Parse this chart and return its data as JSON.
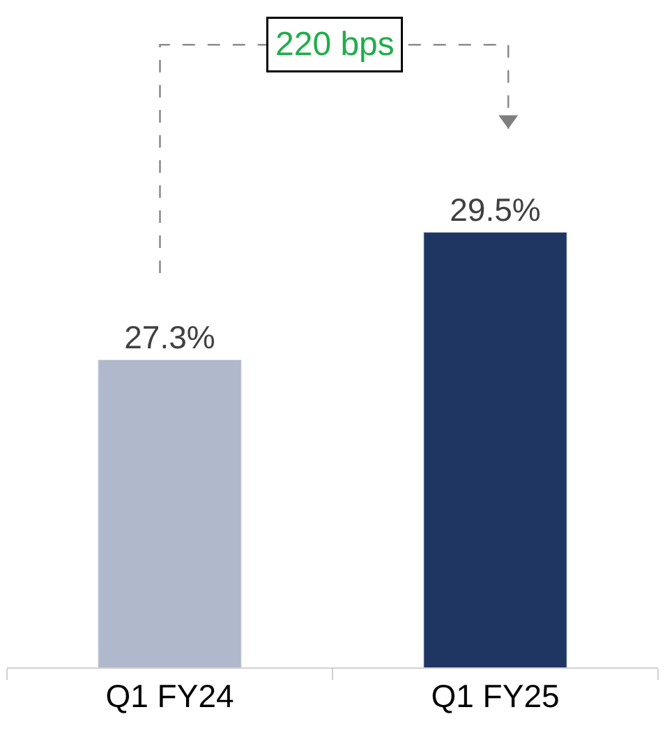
{
  "chart_data": {
    "type": "bar",
    "categories": [
      "Q1 FY24",
      "Q1 FY25"
    ],
    "values": [
      27.3,
      29.5
    ],
    "colors": [
      "#b0b9cc",
      "#1e3661"
    ],
    "value_labels": [
      "27.3%",
      "29.5%"
    ],
    "ylim": [
      22,
      33.5
    ],
    "annotations": [
      "220 bps"
    ]
  }
}
